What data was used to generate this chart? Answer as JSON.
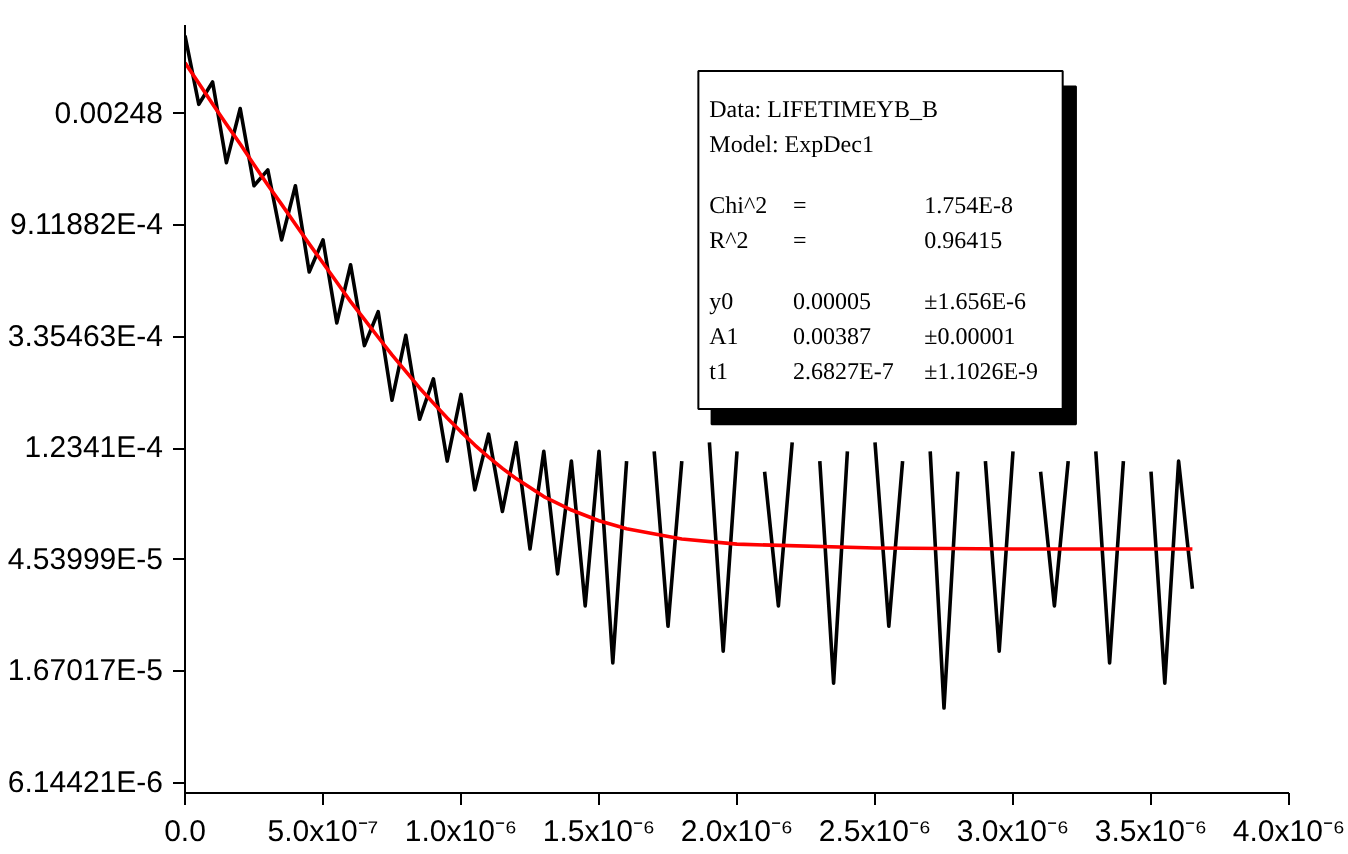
{
  "chart_data": {
    "type": "line",
    "log": "y",
    "grid": false,
    "marker": "none",
    "line_style": "solid",
    "xlim": [
      0,
      4e-06
    ],
    "xticks": [
      {
        "value": 0,
        "label": "0.0"
      },
      {
        "value": 5e-07,
        "label": "5.0x10⁻⁷"
      },
      {
        "value": 1e-06,
        "label": "1.0x10⁻⁶"
      },
      {
        "value": 1.5e-06,
        "label": "1.5x10⁻⁶"
      },
      {
        "value": 2e-06,
        "label": "2.0x10⁻⁶"
      },
      {
        "value": 2.5e-06,
        "label": "2.5x10⁻⁶"
      },
      {
        "value": 3e-06,
        "label": "3.0x10⁻⁶"
      },
      {
        "value": 3.5e-06,
        "label": "3.5x10⁻⁶"
      },
      {
        "value": 4e-06,
        "label": "4.0x10⁻⁶"
      }
    ],
    "ylim": [
      5.6e-06,
      0.0055
    ],
    "yticks": [
      {
        "value": 6.14421e-06,
        "label": "6.14421E-6"
      },
      {
        "value": 1.67017e-05,
        "label": "1.67017E-5"
      },
      {
        "value": 4.53999e-05,
        "label": "4.53999E-5"
      },
      {
        "value": 0.00012341,
        "label": "1.2341E-4"
      },
      {
        "value": 0.000335463,
        "label": "3.35463E-4"
      },
      {
        "value": 0.000911882,
        "label": "9.11882E-4"
      },
      0.00248
    ],
    "series": [
      {
        "color": "#000000",
        "x": [
          0,
          5e-08,
          1e-07,
          1.5e-07,
          2e-07,
          2.5e-07,
          3e-07,
          3.5e-07,
          4e-07,
          4.5e-07,
          5e-07,
          5.5e-07,
          6e-07,
          6.5e-07,
          7e-07,
          7.5e-07,
          8e-07,
          8.5e-07,
          9e-07,
          9.5e-07,
          1e-06,
          1.05e-06,
          1.1e-06,
          1.15e-06,
          1.2e-06,
          1.25e-06,
          1.3e-06,
          1.35e-06,
          1.4e-06,
          1.45e-06,
          1.5e-06,
          1.55e-06,
          1.6e-06,
          1.65e-06,
          1.7e-06,
          1.75e-06,
          1.8e-06,
          1.85e-06,
          1.9e-06,
          1.95e-06,
          2e-06,
          2.05e-06,
          2.1e-06,
          2.15e-06,
          2.2e-06,
          2.25e-06,
          2.3e-06,
          2.35e-06,
          2.4e-06,
          2.45e-06,
          2.5e-06,
          2.55e-06,
          2.6e-06,
          2.65e-06,
          2.7e-06,
          2.75e-06,
          2.8e-06,
          2.85e-06,
          2.9e-06,
          2.95e-06,
          3e-06,
          3.05e-06,
          3.1e-06,
          3.15e-06,
          3.2e-06,
          3.25e-06,
          3.3e-06,
          3.35e-06,
          3.4e-06,
          3.45e-06,
          3.5e-06,
          3.55e-06,
          3.6e-06,
          3.65e-06
        ],
        "values": [
          0.005,
          0.0027,
          0.0033,
          0.0016,
          0.0026,
          0.0013,
          0.0015,
          0.0008,
          0.0013,
          0.0006,
          0.0008,
          0.00038,
          0.00064,
          0.00031,
          0.00042,
          0.00019,
          0.00034,
          0.00016,
          0.00023,
          0.00011,
          0.0002,
          8.5e-05,
          0.00014,
          7e-05,
          0.00013,
          5e-05,
          0.00012,
          4e-05,
          0.00011,
          3e-05,
          0.00012,
          1.8e-05,
          0.00011,
          null,
          0.00012,
          2.5e-05,
          0.00011,
          null,
          0.00013,
          2e-05,
          0.00012,
          null,
          0.0001,
          3e-05,
          0.00013,
          null,
          0.00011,
          1.5e-05,
          0.00012,
          null,
          0.00013,
          2.5e-05,
          0.00011,
          null,
          0.00012,
          1.2e-05,
          0.0001,
          null,
          0.00011,
          2e-05,
          0.00012,
          null,
          0.0001,
          3e-05,
          0.00011,
          null,
          0.00012,
          1.8e-05,
          0.00011,
          null,
          0.0001,
          1.5e-05,
          0.00011,
          3.5e-05
        ]
      },
      {
        "color": "#ff0000",
        "x": [
          0,
          5e-08,
          1e-07,
          1.5e-07,
          2e-07,
          2.5e-07,
          3e-07,
          3.5e-07,
          4e-07,
          4.5e-07,
          5e-07,
          5.5e-07,
          6e-07,
          6.5e-07,
          7e-07,
          7.5e-07,
          8e-07,
          8.5e-07,
          9e-07,
          9.5e-07,
          1e-06,
          1.05e-06,
          1.1e-06,
          1.15e-06,
          1.2e-06,
          1.3e-06,
          1.4e-06,
          1.5e-06,
          1.6e-06,
          1.8e-06,
          2e-06,
          2.5e-06,
          3e-06,
          3.65e-06
        ],
        "values": [
          0.00392,
          0.00326,
          0.00271,
          0.00226,
          0.00189,
          0.00157,
          0.00131,
          0.0011,
          0.00092,
          0.000772,
          0.00065,
          0.000547,
          0.00046,
          0.000392,
          0.000334,
          0.000285,
          0.000246,
          0.000212,
          0.000185,
          0.000162,
          0.000143,
          0.000127,
          0.000114,
          0.000103,
          9.4e-05,
          8e-05,
          7.09e-05,
          6.44e-05,
          5.99e-05,
          5.47e-05,
          5.22e-05,
          5.04e-05,
          5e-05,
          5e-05
        ]
      }
    ],
    "annotations": [
      "Data: LIFETIMEYB_B",
      "Model: ExpDec1",
      "Chi^2  =  1.754E-8",
      "R^2  =  0.96415",
      "y0  0.00005  ±1.656E-6",
      "A1  0.00387  ±0.00001",
      "t1  2.6827E-7  ±1.1026E-9"
    ]
  }
}
